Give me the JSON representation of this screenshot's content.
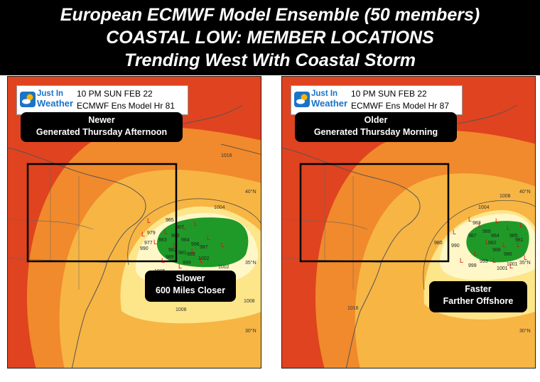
{
  "header": {
    "line1": "European ECMWF Model Ensemble (50 members)",
    "line2": "COASTAL LOW: MEMBER LOCATIONS",
    "line3": "Trending West With Coastal Storm"
  },
  "colors": {
    "header_bg": "#000000",
    "far_orange_red": "#e0431f",
    "orange": "#f08a2c",
    "light_orange": "#f7b544",
    "pale_yellow": "#fde58a",
    "cream": "#fff7c8",
    "low_green": "#1f9a28",
    "member_L": "#dd1111"
  },
  "logo": {
    "line1": "Just In",
    "line2": "Weather",
    "icon": "sun-cloud-icon"
  },
  "panels": [
    {
      "valid_time": "10 PM SUN FEB 22",
      "model": "ECMWF Ens Model Hr 81",
      "run_title": "Newer",
      "run_subtitle": "Generated Thursday Afternoon",
      "note_title": "Slower",
      "note_subtitle": "600 Miles Closer",
      "isobars": [
        "1016",
        "1008",
        "1004",
        "1002",
        "1008"
      ],
      "lat_labels": [
        "40°N",
        "35°N",
        "30°N"
      ],
      "member_labels": [
        "985",
        "987",
        "979",
        "977",
        "990",
        "983",
        "986",
        "984",
        "996",
        "982",
        "981",
        "987",
        "988",
        "989",
        "999",
        "1002",
        "1005"
      ]
    },
    {
      "valid_time": "10 PM SUN FEB 22",
      "model": "ECMWF Ens Model Hr 87",
      "run_title": "Older",
      "run_subtitle": "Generated Thursday Morning",
      "note_title": "Faster",
      "note_subtitle": "Farther Offshore",
      "isobars": [
        "1008",
        "1004",
        "1001",
        "1016"
      ],
      "lat_labels": [
        "40°N",
        "35°N",
        "30°N"
      ],
      "member_labels": [
        "983",
        "989",
        "980",
        "987",
        "984",
        "985",
        "988",
        "999",
        "993",
        "1001",
        "982",
        "986",
        "990",
        "981"
      ]
    }
  ]
}
